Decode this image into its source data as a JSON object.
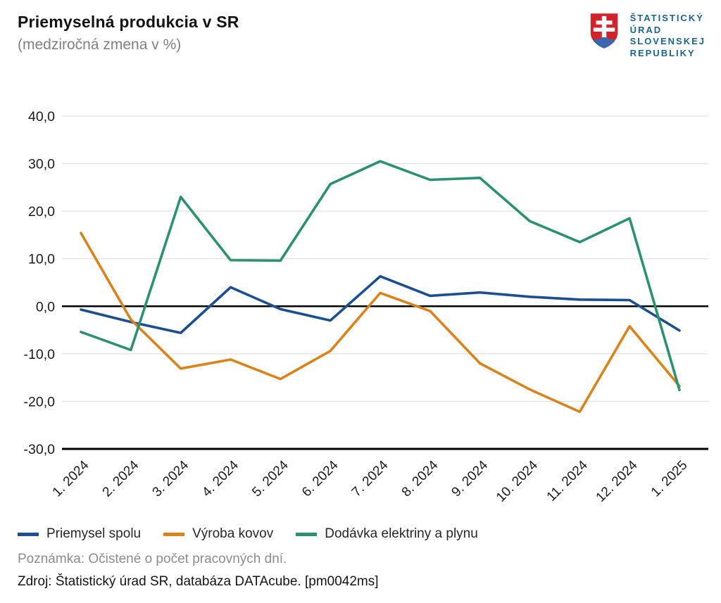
{
  "header": {
    "title": "Priemyselná produkcia v SR",
    "subtitle": "(medziročná zmena v %)"
  },
  "logo": {
    "icon": "slovak-coat-of-arms",
    "lines": [
      "ŠTATISTICKÝ",
      "ÚRAD",
      "SLOVENSKEJ",
      "REPUBLIKY"
    ],
    "text_color": "#1d6390",
    "shield_red": "#d2232a",
    "shield_blue": "#3a66ad"
  },
  "chart_data": {
    "type": "line",
    "title": "Priemyselná produkcia v SR",
    "subtitle": "(medziročná zmena v %)",
    "xlabel": "",
    "ylabel": "",
    "ylim": [
      -30,
      40
    ],
    "ytick_step": 10,
    "grid": true,
    "legend_position": "bottom",
    "categories": [
      "1. 2024",
      "2. 2024",
      "3. 2024",
      "4. 2024",
      "5. 2024",
      "6. 2024",
      "7. 2024",
      "8. 2024",
      "9. 2024",
      "10. 2024",
      "11. 2024",
      "12. 2024",
      "1. 2025"
    ],
    "series": [
      {
        "name": "Priemysel spolu",
        "color": "#1b4f8f",
        "values": [
          -0.7,
          -3.3,
          -5.6,
          4.0,
          -0.6,
          -3.0,
          6.3,
          2.2,
          2.9,
          2.0,
          1.4,
          1.3,
          -5.1
        ]
      },
      {
        "name": "Výroba kovov",
        "color": "#d9831c",
        "values": [
          15.4,
          -2.8,
          -13.1,
          -11.2,
          -15.3,
          -9.4,
          2.8,
          -1.0,
          -12.0,
          -17.5,
          -22.2,
          -4.2,
          -16.8
        ]
      },
      {
        "name": "Dodávka elektriny a plynu",
        "color": "#2b9170",
        "values": [
          -5.4,
          -9.2,
          23.0,
          9.7,
          9.6,
          25.7,
          30.5,
          26.6,
          27.0,
          17.9,
          13.5,
          18.5,
          -17.6
        ]
      }
    ]
  },
  "footer": {
    "note": "Poznámka: Očistené o počet pracovných dní.",
    "source": "Zdroj: Štatistický úrad SR, databáza DATAcube. [pm0042ms]"
  }
}
